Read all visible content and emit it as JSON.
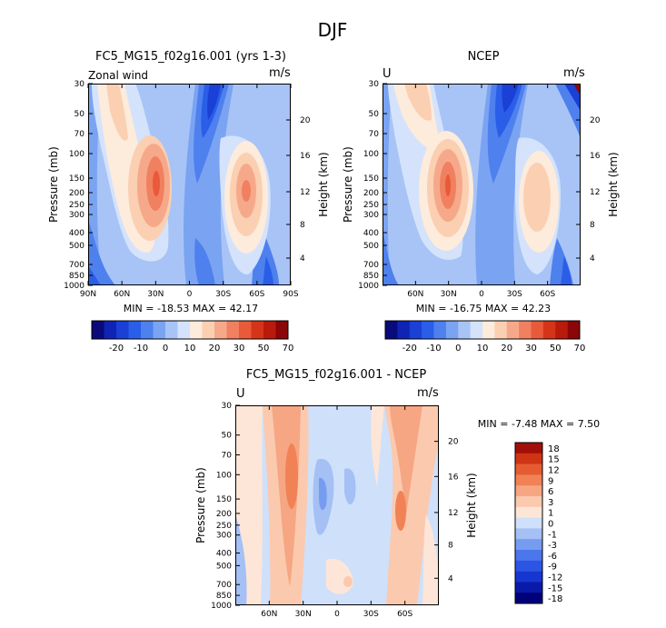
{
  "title": "DJF",
  "colors": {
    "main_scale": [
      "#0a0a7a",
      "#0f23b4",
      "#1a40d6",
      "#2a5ee8",
      "#4e80ee",
      "#7aa3f2",
      "#a8c4f6",
      "#d4e3fb",
      "#fdebdc",
      "#fbcfb1",
      "#f6a98a",
      "#f08060",
      "#e85a3a",
      "#d63418",
      "#b81a0c",
      "#8a0608"
    ],
    "diff_scale": [
      "#00007a",
      "#0a1aa8",
      "#1636d0",
      "#2c55e6",
      "#4c76ec",
      "#769cf0",
      "#a4c0f4",
      "#cfe0fa",
      "#fde6d8",
      "#fbc9ae",
      "#f6a683",
      "#f08256",
      "#e65c32",
      "#cf3414",
      "#a01008"
    ]
  },
  "chart_data": [
    {
      "type": "heatmap",
      "name": "model",
      "title": "FC5_MG15_f02g16.001 (yrs 1-3)",
      "left_label": "Zonal wind",
      "right_label": "m/s",
      "xlabel": "",
      "ylabel": "Pressure (mb)",
      "y2label": "Height (km)",
      "xticks": [
        "90N",
        "60N",
        "30N",
        "0",
        "30S",
        "60S",
        "90S"
      ],
      "yticks": [
        "30",
        "50",
        "70",
        "100",
        "150",
        "200",
        "250",
        "300",
        "400",
        "500",
        "700",
        "850",
        "1000"
      ],
      "y2ticks": [
        "20",
        "16",
        "12",
        "8",
        "4"
      ],
      "stats": "MIN = -18.53   MAX =  42.17",
      "colorbar_labels": [
        "-20",
        "-10",
        "0",
        "10",
        "20",
        "30",
        "50",
        "70"
      ]
    },
    {
      "type": "heatmap",
      "name": "ncep",
      "title": "NCEP",
      "left_label": "U",
      "right_label": "m/s",
      "xlabel": "",
      "ylabel": "Pressure (mb)",
      "y2label": "Height (km)",
      "xticks": [
        "60N",
        "30N",
        "0",
        "30S",
        "60S"
      ],
      "yticks": [
        "30",
        "50",
        "70",
        "100",
        "150",
        "200",
        "250",
        "300",
        "400",
        "500",
        "700",
        "850",
        "1000"
      ],
      "y2ticks": [
        "20",
        "16",
        "12",
        "8",
        "4"
      ],
      "stats": "MIN = -16.75   MAX =  42.23",
      "colorbar_labels": [
        "-20",
        "-10",
        "0",
        "10",
        "20",
        "30",
        "50",
        "70"
      ]
    },
    {
      "type": "heatmap",
      "name": "difference",
      "title": "FC5_MG15_f02g16.001 - NCEP",
      "left_label": "U",
      "right_label": "m/s",
      "xlabel": "",
      "ylabel": "Pressure (mb)",
      "y2label": "Height (km)",
      "xticks": [
        "60N",
        "30N",
        "0",
        "30S",
        "60S"
      ],
      "yticks": [
        "30",
        "50",
        "70",
        "100",
        "150",
        "200",
        "250",
        "300",
        "400",
        "500",
        "700",
        "850",
        "1000"
      ],
      "y2ticks": [
        "20",
        "16",
        "12",
        "8",
        "4"
      ],
      "stats": "MIN =   -7.48   MAX =    7.50",
      "colorbar_labels": [
        "18",
        "15",
        "12",
        "9",
        "6",
        "3",
        "1",
        "0",
        "-1",
        "-3",
        "-6",
        "-9",
        "-12",
        "-15",
        "-18"
      ]
    }
  ]
}
